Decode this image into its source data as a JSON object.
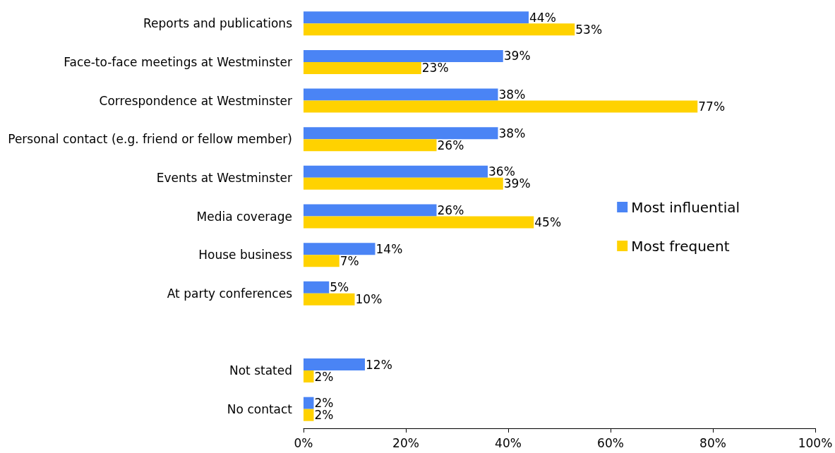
{
  "chart_data": {
    "type": "bar",
    "orientation": "horizontal",
    "categories": [
      "Reports and publications",
      "Face-to-face meetings at Westminster",
      "Correspondence at Westminster",
      "Personal contact (e.g. friend or fellow member)",
      "Events at Westminster",
      "Media coverage",
      "House business",
      "At party conferences",
      null,
      "Not stated",
      "No contact"
    ],
    "series": [
      {
        "name": "Most influential",
        "color": "#4a84f5",
        "values": [
          44,
          39,
          38,
          38,
          36,
          26,
          14,
          5,
          null,
          12,
          2
        ],
        "value_labels": [
          "44%",
          "39%",
          "38%",
          "38%",
          "36%",
          "26%",
          "14%",
          "5%",
          null,
          "12%",
          "2%"
        ]
      },
      {
        "name": "Most frequent",
        "color": "#ffd200",
        "values": [
          53,
          23,
          77,
          26,
          39,
          45,
          7,
          10,
          null,
          2,
          2
        ],
        "value_labels": [
          "53%",
          "23%",
          "77%",
          "26%",
          "39%",
          "45%",
          "7%",
          "10%",
          null,
          "2%",
          "2%"
        ]
      }
    ],
    "xlim": [
      0,
      100
    ],
    "xticks": [
      {
        "value": 0,
        "label": "0%"
      },
      {
        "value": 20,
        "label": "20%"
      },
      {
        "value": 40,
        "label": "40%"
      },
      {
        "value": 60,
        "label": "60%"
      },
      {
        "value": 80,
        "label": "80%"
      },
      {
        "value": 100,
        "label": "100%"
      }
    ],
    "legend": "right",
    "grid": false
  }
}
